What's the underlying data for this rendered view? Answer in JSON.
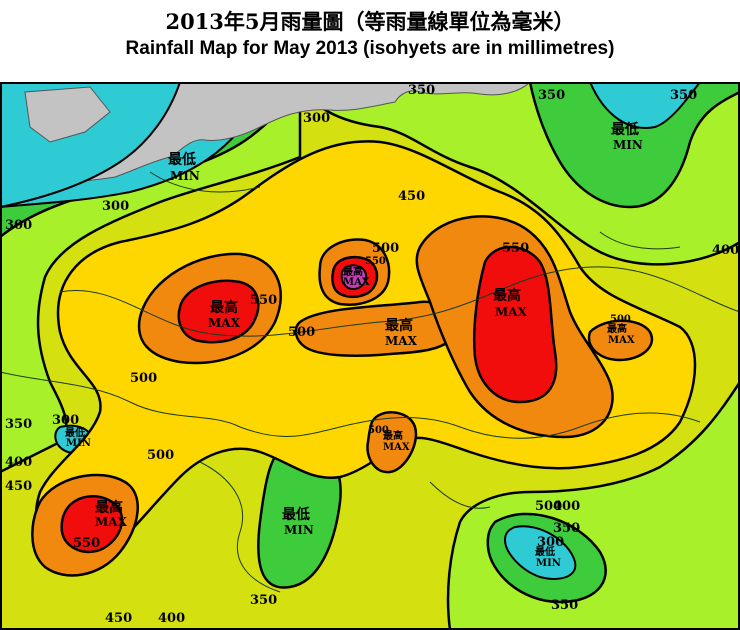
{
  "title": {
    "zh": "2013年5月雨量圖（等雨量線單位為毫米）",
    "en": "Rainfall Map for May 2013 (isohyets are in millimetres)"
  },
  "legend_levels": {
    "min_zh": "最低",
    "min_en": "MIN",
    "max_zh": "最高",
    "max_en": "MAX"
  },
  "contour_labels": {
    "l300a": "300",
    "l300b": "300",
    "l300c": "300",
    "l300d": "300",
    "l300e": "300",
    "l350a": "350",
    "l350b": "350",
    "l350c": "350",
    "l350d": "350",
    "l350e": "350",
    "l350f": "350",
    "l400a": "400",
    "l400b": "400",
    "l400c": "400",
    "l400d": "400",
    "l400e": "400",
    "l450a": "450",
    "l450b": "450",
    "l450c": "450",
    "l500a": "500",
    "l500b": "500",
    "l500c": "500",
    "l500d": "500",
    "l500e": "500",
    "l500f": "500",
    "l500g": "500",
    "l550a": "550",
    "l550b": "550",
    "l550c": "550",
    "l550d": "550"
  },
  "colors": {
    "land_gray": "#c3c3c3",
    "lt300": "#2ecbd4",
    "r300": "#3fcc3c",
    "r350": "#a8f02a",
    "r400": "#d4e00f",
    "r450": "#ffd700",
    "r500": "#f2890f",
    "r550": "#f20d0d",
    "ge600": "#c33cb5",
    "contour": "#000000"
  }
}
